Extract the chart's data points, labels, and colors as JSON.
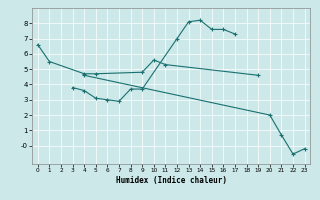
{
  "xlabel": "Humidex (Indice chaleur)",
  "bg_color": "#cce8e8",
  "line_color": "#1a7070",
  "grid_color": "#ffffff",
  "xlim": [
    -0.5,
    23.5
  ],
  "ylim": [
    -1.2,
    9.0
  ],
  "xticks": [
    0,
    1,
    2,
    3,
    4,
    5,
    6,
    7,
    8,
    9,
    10,
    11,
    12,
    13,
    14,
    15,
    16,
    17,
    18,
    19,
    20,
    21,
    22,
    23
  ],
  "yticks": [
    0,
    1,
    2,
    3,
    4,
    5,
    6,
    7,
    8
  ],
  "ytick_labels": [
    "-0",
    "1",
    "2",
    "3",
    "4",
    "5",
    "6",
    "7",
    "8"
  ],
  "xa": [
    0,
    1,
    4,
    5,
    9,
    10,
    11,
    19
  ],
  "ya": [
    6.6,
    5.5,
    4.7,
    4.7,
    4.8,
    5.6,
    5.3,
    4.6
  ],
  "xb": [
    3,
    4,
    5,
    6,
    7,
    8,
    9,
    12,
    13,
    14,
    15,
    16,
    17
  ],
  "yb": [
    3.8,
    3.6,
    3.1,
    3.0,
    2.9,
    3.7,
    3.7,
    7.0,
    8.1,
    8.2,
    7.6,
    7.6,
    7.3
  ],
  "xc": [
    4,
    20,
    21,
    22,
    23
  ],
  "yc": [
    4.6,
    2.0,
    0.7,
    -0.55,
    -0.2
  ]
}
